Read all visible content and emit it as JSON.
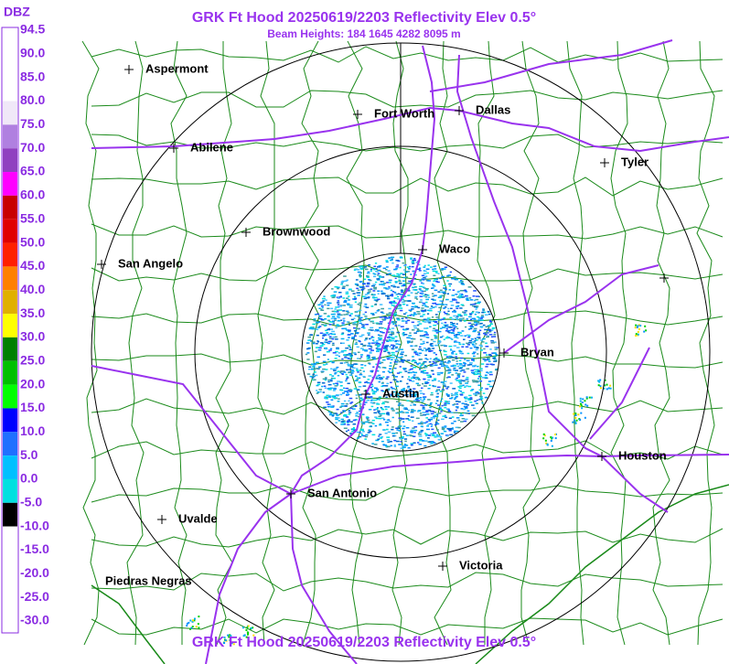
{
  "header": {
    "title": "GRK Ft Hood 20250619/2203 Reflectivity Elev 0.5°",
    "subtitle": "Beam Heights: 184 1645 4282 8095 m"
  },
  "legend": {
    "title": "DBZ",
    "labels": [
      "94.5",
      "90.0",
      "85.0",
      "80.0",
      "75.0",
      "70.0",
      "65.0",
      "60.0",
      "55.0",
      "50.0",
      "45.0",
      "40.0",
      "35.0",
      "30.0",
      "25.0",
      "20.0",
      "15.0",
      "10.0",
      "5.0",
      "0.0",
      "-5.0",
      "-10.0",
      "-15.0",
      "-20.0",
      "-25.0",
      "-30.0"
    ]
  },
  "cities": [
    "Aspermont",
    "Abilene",
    "Fort Worth",
    "Dallas",
    "Tyler",
    "Brownwood",
    "Waco",
    "San Angelo",
    "Bryan",
    "Austin",
    "Houston",
    "San Antonio",
    "Uvalde",
    "Victoria",
    "Piedras Negras"
  ]
}
